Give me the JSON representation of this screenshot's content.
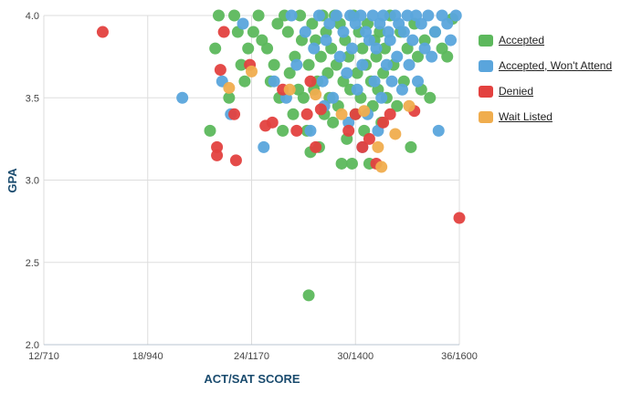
{
  "chart_data": {
    "type": "scatter",
    "title": "",
    "xlabel": "ACT/SAT SCORE",
    "ylabel": "GPA",
    "x_ticks": [
      "12/710",
      "18/940",
      "24/1170",
      "30/1400",
      "36/1600"
    ],
    "x_tick_values": [
      12,
      18,
      24,
      30,
      36
    ],
    "y_ticks": [
      "2.0",
      "2.5",
      "3.0",
      "3.5",
      "4.0"
    ],
    "y_tick_values": [
      2.0,
      2.5,
      3.0,
      3.5,
      4.0
    ],
    "xlim": [
      12,
      36
    ],
    "ylim": [
      2.0,
      4.0
    ],
    "grid": "vertical-and-horizontal",
    "legend_position": "right",
    "colors": {
      "Accepted": "#5cb85c",
      "Accepted, Won't Attend": "#5aa5dc",
      "Denied": "#e3413f",
      "Wait Listed": "#f0ad4e"
    },
    "series": [
      {
        "name": "Accepted",
        "points": [
          [
            21.6,
            3.3
          ],
          [
            22.1,
            4.0
          ],
          [
            21.9,
            3.8
          ],
          [
            22.7,
            3.5
          ],
          [
            23.0,
            4.0
          ],
          [
            23.2,
            3.9
          ],
          [
            23.4,
            3.7
          ],
          [
            23.6,
            3.6
          ],
          [
            23.8,
            3.8
          ],
          [
            24.1,
            3.9
          ],
          [
            24.4,
            4.0
          ],
          [
            24.6,
            3.85
          ],
          [
            24.9,
            3.8
          ],
          [
            25.1,
            3.6
          ],
          [
            25.3,
            3.7
          ],
          [
            25.5,
            3.95
          ],
          [
            25.6,
            3.5
          ],
          [
            25.8,
            3.3
          ],
          [
            25.9,
            4.0
          ],
          [
            26.1,
            3.9
          ],
          [
            26.2,
            3.65
          ],
          [
            26.4,
            3.4
          ],
          [
            26.5,
            3.75
          ],
          [
            26.7,
            3.55
          ],
          [
            26.8,
            4.0
          ],
          [
            26.9,
            3.85
          ],
          [
            27.0,
            3.5
          ],
          [
            27.2,
            3.3
          ],
          [
            27.3,
            3.7
          ],
          [
            27.3,
            2.3
          ],
          [
            27.4,
            3.17
          ],
          [
            27.5,
            3.95
          ],
          [
            27.6,
            3.55
          ],
          [
            27.7,
            3.85
          ],
          [
            27.8,
            3.6
          ],
          [
            27.9,
            3.2
          ],
          [
            28.0,
            3.75
          ],
          [
            28.1,
            4.0
          ],
          [
            28.2,
            3.4
          ],
          [
            28.3,
            3.9
          ],
          [
            28.4,
            3.65
          ],
          [
            28.5,
            3.5
          ],
          [
            28.6,
            3.8
          ],
          [
            28.7,
            3.35
          ],
          [
            28.8,
            4.0
          ],
          [
            28.9,
            3.7
          ],
          [
            29.0,
            3.45
          ],
          [
            29.1,
            3.95
          ],
          [
            29.2,
            3.1
          ],
          [
            29.3,
            3.6
          ],
          [
            29.4,
            3.85
          ],
          [
            29.5,
            3.25
          ],
          [
            29.6,
            3.75
          ],
          [
            29.7,
            3.55
          ],
          [
            29.8,
            3.1
          ],
          [
            29.9,
            4.0
          ],
          [
            30.0,
            3.4
          ],
          [
            30.1,
            3.65
          ],
          [
            30.2,
            3.9
          ],
          [
            30.3,
            3.5
          ],
          [
            30.4,
            3.8
          ],
          [
            30.5,
            3.3
          ],
          [
            30.6,
            3.7
          ],
          [
            30.7,
            3.95
          ],
          [
            30.8,
            3.1
          ],
          [
            30.9,
            3.6
          ],
          [
            31.0,
            3.45
          ],
          [
            31.1,
            3.85
          ],
          [
            31.2,
            3.75
          ],
          [
            31.3,
            3.55
          ],
          [
            31.4,
            3.9
          ],
          [
            31.5,
            3.35
          ],
          [
            31.6,
            3.65
          ],
          [
            31.7,
            3.8
          ],
          [
            31.8,
            3.5
          ],
          [
            32.0,
            4.0
          ],
          [
            32.2,
            3.7
          ],
          [
            32.4,
            3.45
          ],
          [
            32.6,
            3.9
          ],
          [
            32.8,
            3.6
          ],
          [
            33.0,
            3.8
          ],
          [
            33.2,
            3.2
          ],
          [
            33.4,
            3.95
          ],
          [
            33.6,
            3.75
          ],
          [
            33.8,
            3.55
          ],
          [
            34.0,
            3.85
          ],
          [
            34.3,
            3.5
          ],
          [
            34.6,
            3.9
          ],
          [
            35.0,
            3.8
          ],
          [
            35.3,
            3.75
          ],
          [
            35.6,
            3.98
          ]
        ]
      },
      {
        "name": "Accepted, Won't Attend",
        "points": [
          [
            20.0,
            3.5
          ],
          [
            22.3,
            3.6
          ],
          [
            22.8,
            3.4
          ],
          [
            23.5,
            3.95
          ],
          [
            24.7,
            3.2
          ],
          [
            25.3,
            3.6
          ],
          [
            26.0,
            3.5
          ],
          [
            26.3,
            4.0
          ],
          [
            26.6,
            3.7
          ],
          [
            27.1,
            3.9
          ],
          [
            27.4,
            3.3
          ],
          [
            27.6,
            3.8
          ],
          [
            27.9,
            4.0
          ],
          [
            28.1,
            3.6
          ],
          [
            28.3,
            3.85
          ],
          [
            28.5,
            3.95
          ],
          [
            28.7,
            3.5
          ],
          [
            28.9,
            4.0
          ],
          [
            29.1,
            3.75
          ],
          [
            29.3,
            3.9
          ],
          [
            29.5,
            3.65
          ],
          [
            29.7,
            4.0
          ],
          [
            29.8,
            3.8
          ],
          [
            30.0,
            3.95
          ],
          [
            30.1,
            3.55
          ],
          [
            30.3,
            4.0
          ],
          [
            30.4,
            3.7
          ],
          [
            30.6,
            3.9
          ],
          [
            30.7,
            3.4
          ],
          [
            30.8,
            3.85
          ],
          [
            31.0,
            4.0
          ],
          [
            31.1,
            3.6
          ],
          [
            31.2,
            3.8
          ],
          [
            31.4,
            3.95
          ],
          [
            31.5,
            3.5
          ],
          [
            31.6,
            4.0
          ],
          [
            31.8,
            3.7
          ],
          [
            31.9,
            3.9
          ],
          [
            32.0,
            3.85
          ],
          [
            32.1,
            3.6
          ],
          [
            32.3,
            4.0
          ],
          [
            32.4,
            3.75
          ],
          [
            32.5,
            3.95
          ],
          [
            32.7,
            3.55
          ],
          [
            32.8,
            3.9
          ],
          [
            33.0,
            4.0
          ],
          [
            33.1,
            3.7
          ],
          [
            33.3,
            3.85
          ],
          [
            33.5,
            4.0
          ],
          [
            33.6,
            3.6
          ],
          [
            33.8,
            3.95
          ],
          [
            34.0,
            3.8
          ],
          [
            34.2,
            4.0
          ],
          [
            34.4,
            3.75
          ],
          [
            34.6,
            3.9
          ],
          [
            34.8,
            3.3
          ],
          [
            35.0,
            4.0
          ],
          [
            35.3,
            3.95
          ],
          [
            35.5,
            3.85
          ],
          [
            35.8,
            4.0
          ],
          [
            30.4,
            3.2
          ],
          [
            31.3,
            3.3
          ],
          [
            29.6,
            3.35
          ],
          [
            28.2,
            3.45
          ]
        ]
      },
      {
        "name": "Denied",
        "points": [
          [
            15.4,
            3.9
          ],
          [
            22.0,
            3.2
          ],
          [
            22.0,
            3.15
          ],
          [
            22.2,
            3.67
          ],
          [
            22.4,
            3.9
          ],
          [
            23.0,
            3.4
          ],
          [
            23.1,
            3.12
          ],
          [
            23.9,
            3.7
          ],
          [
            24.8,
            3.33
          ],
          [
            25.2,
            3.35
          ],
          [
            26.6,
            3.3
          ],
          [
            27.2,
            3.4
          ],
          [
            27.7,
            3.2
          ],
          [
            28.0,
            3.43
          ],
          [
            29.6,
            3.3
          ],
          [
            30.0,
            3.4
          ],
          [
            30.4,
            3.2
          ],
          [
            30.8,
            3.25
          ],
          [
            31.2,
            3.1
          ],
          [
            31.6,
            3.35
          ],
          [
            32.0,
            3.4
          ],
          [
            33.4,
            3.42
          ],
          [
            36.0,
            2.77
          ],
          [
            25.8,
            3.55
          ],
          [
            27.4,
            3.6
          ]
        ]
      },
      {
        "name": "Wait Listed",
        "points": [
          [
            22.7,
            3.56
          ],
          [
            24.0,
            3.66
          ],
          [
            26.2,
            3.55
          ],
          [
            27.7,
            3.52
          ],
          [
            29.2,
            3.4
          ],
          [
            30.5,
            3.42
          ],
          [
            31.3,
            3.2
          ],
          [
            31.5,
            3.08
          ],
          [
            32.3,
            3.28
          ],
          [
            33.1,
            3.45
          ]
        ]
      }
    ]
  }
}
